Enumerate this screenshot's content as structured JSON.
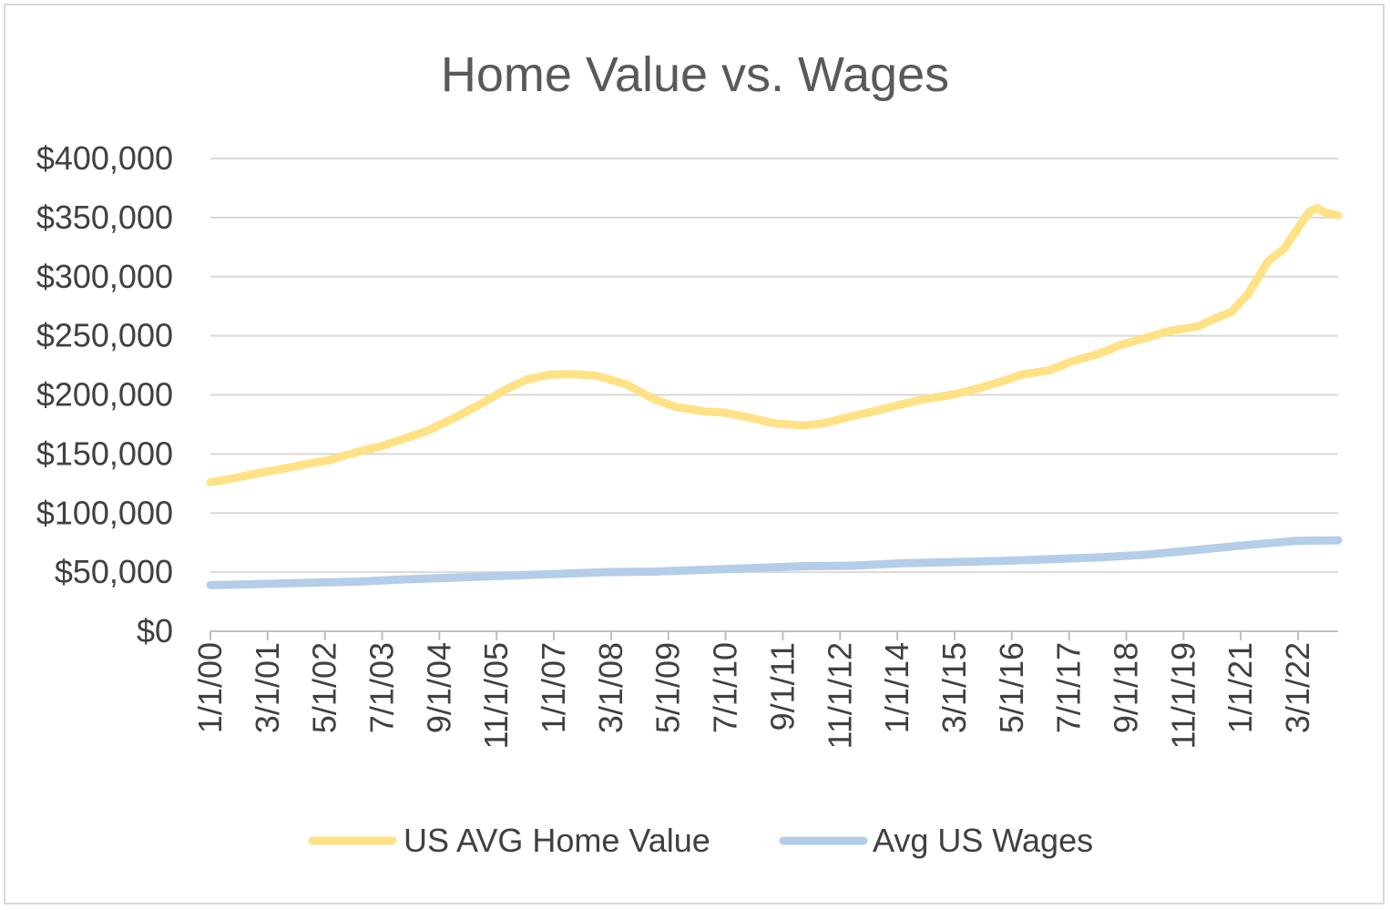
{
  "chart_data": {
    "type": "line",
    "title": "Home Value vs. Wages",
    "xlabel": "",
    "ylabel": "",
    "ylim": [
      0,
      400000
    ],
    "y_ticks": [
      "$0",
      "$50,000",
      "$100,000",
      "$150,000",
      "$200,000",
      "$250,000",
      "$300,000",
      "$350,000",
      "$400,000"
    ],
    "x_range": [
      "2000-01-01",
      "2022-11-01"
    ],
    "x_tick_labels": [
      "1/1/00",
      "3/1/01",
      "5/1/02",
      "7/1/03",
      "9/1/04",
      "11/1/05",
      "1/1/07",
      "3/1/08",
      "5/1/09",
      "7/1/10",
      "9/1/11",
      "11/1/12",
      "1/1/14",
      "3/1/15",
      "5/1/16",
      "7/1/17",
      "9/1/18",
      "11/1/19",
      "1/1/21",
      "3/1/22"
    ],
    "grid": true,
    "legend_position": "bottom",
    "series": [
      {
        "name": "US AVG Home Value",
        "color": "#ffe285",
        "points": [
          [
            "2000-01-01",
            126000
          ],
          [
            "2000-06-01",
            129000
          ],
          [
            "2001-01-01",
            134000
          ],
          [
            "2001-06-01",
            137000
          ],
          [
            "2002-01-01",
            142000
          ],
          [
            "2002-06-01",
            145000
          ],
          [
            "2003-01-01",
            152000
          ],
          [
            "2003-06-01",
            156000
          ],
          [
            "2004-01-01",
            164000
          ],
          [
            "2004-06-01",
            170000
          ],
          [
            "2005-01-01",
            182000
          ],
          [
            "2005-06-01",
            191000
          ],
          [
            "2006-01-01",
            205000
          ],
          [
            "2006-06-01",
            213000
          ],
          [
            "2006-11-01",
            217000
          ],
          [
            "2007-06-01",
            217500
          ],
          [
            "2007-11-01",
            216000
          ],
          [
            "2008-06-01",
            209000
          ],
          [
            "2009-01-01",
            196000
          ],
          [
            "2009-06-01",
            190000
          ],
          [
            "2010-01-01",
            186000
          ],
          [
            "2010-06-01",
            185000
          ],
          [
            "2011-01-01",
            180000
          ],
          [
            "2011-06-01",
            176000
          ],
          [
            "2012-01-01",
            174000
          ],
          [
            "2012-06-01",
            176000
          ],
          [
            "2013-01-01",
            182000
          ],
          [
            "2013-06-01",
            186000
          ],
          [
            "2014-01-01",
            192000
          ],
          [
            "2014-06-01",
            196000
          ],
          [
            "2015-01-01",
            200000
          ],
          [
            "2015-06-01",
            204000
          ],
          [
            "2016-01-01",
            211000
          ],
          [
            "2016-06-01",
            217000
          ],
          [
            "2017-01-01",
            221000
          ],
          [
            "2017-06-01",
            228000
          ],
          [
            "2018-01-01",
            235000
          ],
          [
            "2018-06-01",
            242000
          ],
          [
            "2019-01-01",
            249000
          ],
          [
            "2019-06-01",
            254000
          ],
          [
            "2020-01-01",
            258000
          ],
          [
            "2020-06-01",
            266000
          ],
          [
            "2020-09-01",
            270000
          ],
          [
            "2021-01-01",
            285000
          ],
          [
            "2021-06-01",
            313000
          ],
          [
            "2021-10-01",
            324000
          ],
          [
            "2022-01-01",
            340000
          ],
          [
            "2022-04-01",
            355000
          ],
          [
            "2022-06-01",
            358000
          ],
          [
            "2022-08-01",
            354000
          ],
          [
            "2022-11-01",
            352000
          ]
        ]
      },
      {
        "name": "Avg US Wages",
        "color": "#b4cde8",
        "points": [
          [
            "2000-01-01",
            39000
          ],
          [
            "2001-01-01",
            40000
          ],
          [
            "2002-01-01",
            41000
          ],
          [
            "2003-01-01",
            42000
          ],
          [
            "2004-01-01",
            44000
          ],
          [
            "2005-01-01",
            45500
          ],
          [
            "2006-01-01",
            47000
          ],
          [
            "2007-01-01",
            48500
          ],
          [
            "2008-01-01",
            50000
          ],
          [
            "2009-01-01",
            50500
          ],
          [
            "2010-01-01",
            52000
          ],
          [
            "2011-01-01",
            53500
          ],
          [
            "2012-01-01",
            55000
          ],
          [
            "2013-01-01",
            55500
          ],
          [
            "2014-01-01",
            57500
          ],
          [
            "2015-01-01",
            58500
          ],
          [
            "2016-01-01",
            59500
          ],
          [
            "2017-01-01",
            61000
          ],
          [
            "2018-01-01",
            62500
          ],
          [
            "2019-01-01",
            65000
          ],
          [
            "2020-01-01",
            69000
          ],
          [
            "2021-01-01",
            73000
          ],
          [
            "2022-01-01",
            76500
          ],
          [
            "2022-11-01",
            77000
          ]
        ]
      }
    ]
  }
}
